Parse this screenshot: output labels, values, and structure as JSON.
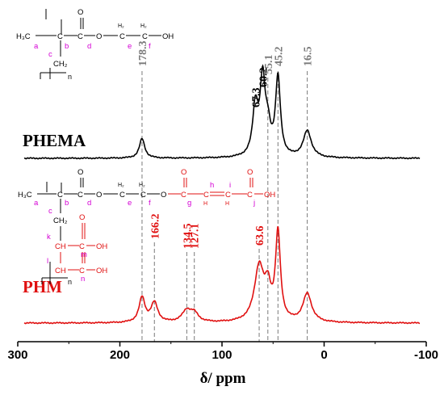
{
  "chart_data": {
    "type": "line",
    "xlabel": "δ/ ppm",
    "xlim": [
      300,
      -100
    ],
    "x_ticks": [
      300,
      200,
      100,
      0,
      -100
    ],
    "colors": {
      "PHEMA": "#000000",
      "PHM": "#e01010",
      "ref_line": "#7a7a7a",
      "structure_label": "#d400d4"
    },
    "series": [
      {
        "name": "PHEMA",
        "peaks": [
          {
            "ppm": 178.3,
            "height": 0.22,
            "width": 2.0
          },
          {
            "ppm": 67.3,
            "height": 0.55,
            "width": 2.0
          },
          {
            "ppm": 60.2,
            "height": 0.83,
            "width": 1.9
          },
          {
            "ppm": 55.1,
            "height": 0.28,
            "width": 2.0
          },
          {
            "ppm": 45.2,
            "height": 0.88,
            "width": 1.8
          },
          {
            "ppm": 16.5,
            "height": 0.3,
            "width": 3.0
          }
        ]
      },
      {
        "name": "PHM",
        "peaks": [
          {
            "ppm": 178.3,
            "height": 0.28,
            "width": 2.2
          },
          {
            "ppm": 166.2,
            "height": 0.22,
            "width": 2.5
          },
          {
            "ppm": 134.5,
            "height": 0.13,
            "width": 3.5
          },
          {
            "ppm": 127.1,
            "height": 0.09,
            "width": 3.0
          },
          {
            "ppm": 63.6,
            "height": 0.62,
            "width": 3.5
          },
          {
            "ppm": 55.1,
            "height": 0.32,
            "width": 2.2
          },
          {
            "ppm": 45.2,
            "height": 0.98,
            "width": 1.8
          },
          {
            "ppm": 16.5,
            "height": 0.32,
            "width": 3.2
          }
        ]
      }
    ],
    "peak_labels": [
      {
        "text": "178.3",
        "ppm": 178.3,
        "series": "PHEMA",
        "style": "ref"
      },
      {
        "text": "67.3",
        "ppm": 67.3,
        "series": "PHEMA",
        "style": "black"
      },
      {
        "text": "60.2",
        "ppm": 60.2,
        "series": "PHEMA",
        "style": "black"
      },
      {
        "text": "55.1",
        "ppm": 55.1,
        "series": "PHEMA",
        "style": "ref"
      },
      {
        "text": "45.2",
        "ppm": 45.2,
        "series": "PHEMA",
        "style": "ref"
      },
      {
        "text": "16.5",
        "ppm": 16.5,
        "series": "PHEMA",
        "style": "ref"
      },
      {
        "text": "166.2",
        "ppm": 166.2,
        "series": "PHM",
        "style": "red"
      },
      {
        "text": "134.5",
        "ppm": 134.5,
        "series": "PHM",
        "style": "red"
      },
      {
        "text": "127.1",
        "ppm": 127.1,
        "series": "PHM",
        "style": "red"
      },
      {
        "text": "63.6",
        "ppm": 63.6,
        "series": "PHM",
        "style": "red"
      }
    ],
    "reference_lines_ppm": [
      178.3,
      166.2,
      134.5,
      127.1,
      63.6,
      55.1,
      45.2,
      16.5
    ],
    "series_labels": [
      "PHEMA",
      "PHM"
    ]
  },
  "structures": {
    "phema": {
      "h3c": "H₃C",
      "h2_1": "H₂",
      "h2_2": "H₂",
      "oh": "OH",
      "o": "O",
      "ch2": "CH₂",
      "ch3": "CH₃",
      "n": "n",
      "ch2_e": "C",
      "ch2_f": "C",
      "labels": [
        "a",
        "b",
        "c",
        "d",
        "e",
        "f"
      ]
    },
    "phm": {
      "h3c": "H₃C",
      "h2_1": "H₂",
      "h2_2": "H₂",
      "oh": "OH",
      "o": "O",
      "ch2": "CH₂",
      "ch": "CH",
      "h": "H",
      "n": "n",
      "oh2": "OH",
      "oh3": "OH",
      "c": "C",
      "labels": [
        "a",
        "b",
        "c",
        "d",
        "e",
        "f",
        "g",
        "h",
        "i",
        "j",
        "k",
        "l",
        "m",
        "n"
      ]
    }
  }
}
